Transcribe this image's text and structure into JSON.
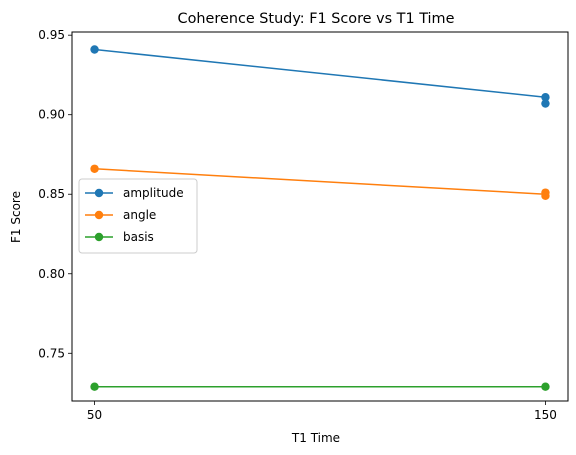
{
  "chart_data": {
    "type": "line",
    "title": "Coherence Study: F1 Score vs T1 Time",
    "xlabel": "T1 Time",
    "ylabel": "F1 Score",
    "x_ticks": [
      50,
      150
    ],
    "y_ticks": [
      0.75,
      0.8,
      0.85,
      0.9,
      0.95
    ],
    "y_tick_labels": [
      "0.75",
      "0.80",
      "0.85",
      "0.90",
      "0.95"
    ],
    "xlim": [
      45,
      155
    ],
    "ylim": [
      0.72,
      0.952
    ],
    "grid": false,
    "legend_position": "center-left",
    "series": [
      {
        "name": "amplitude",
        "color": "#1f77b4",
        "points": [
          [
            50,
            0.941
          ],
          [
            150,
            0.911
          ],
          [
            150,
            0.907
          ]
        ],
        "line": [
          [
            50,
            0.941
          ],
          [
            150,
            0.911
          ]
        ]
      },
      {
        "name": "angle",
        "color": "#ff7f0e",
        "points": [
          [
            50,
            0.866
          ],
          [
            150,
            0.851
          ],
          [
            150,
            0.849
          ]
        ],
        "line": [
          [
            50,
            0.866
          ],
          [
            150,
            0.85
          ]
        ]
      },
      {
        "name": "basis",
        "color": "#2ca02c",
        "points": [
          [
            50,
            0.729
          ],
          [
            150,
            0.729
          ]
        ],
        "line": [
          [
            50,
            0.729
          ],
          [
            150,
            0.729
          ]
        ]
      }
    ]
  }
}
